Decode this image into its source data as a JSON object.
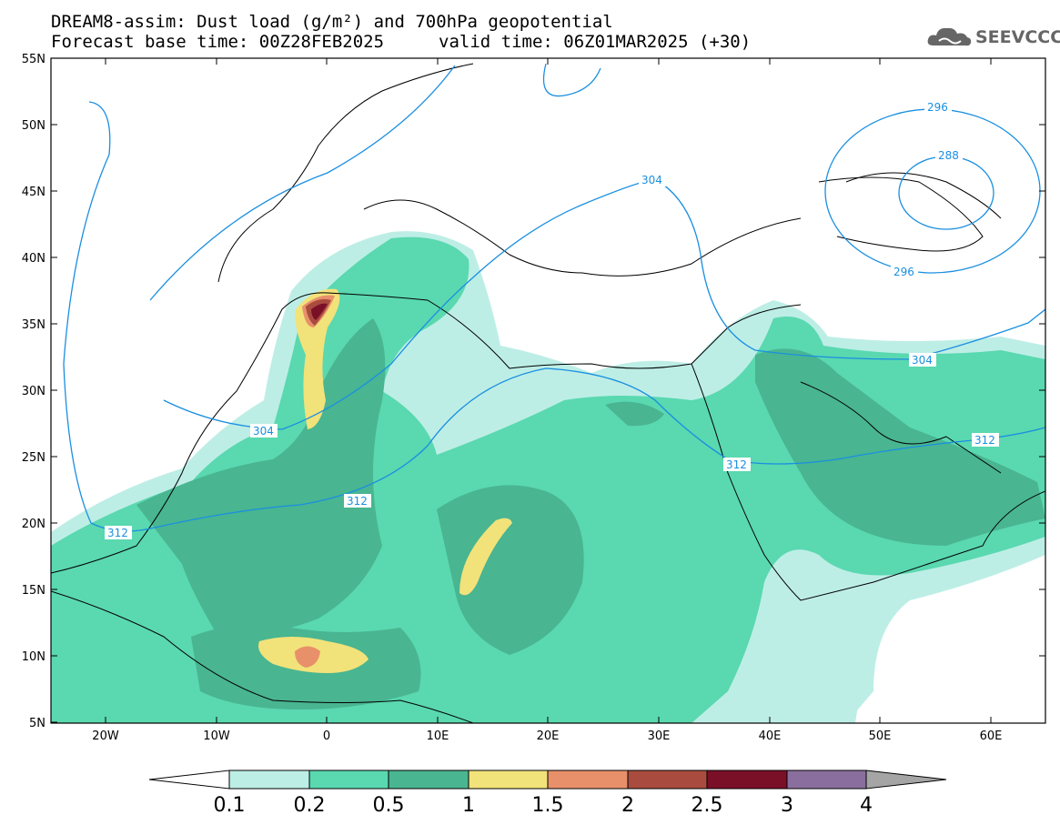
{
  "title": {
    "line1": "DREAM8-assim: Dust load (g/m²) and 700hPa geopotential",
    "line2a": "Forecast base time: 00Z28FEB2025",
    "line2b": "valid time: 06Z01MAR2025 (+30)"
  },
  "logo": {
    "text": "SEEVCCC",
    "icon": "cloud-logo-icon"
  },
  "map": {
    "lat_labels": [
      "55N",
      "50N",
      "45N",
      "40N",
      "35N",
      "30N",
      "25N",
      "20N",
      "15N",
      "10N",
      "5N"
    ],
    "lon_labels": [
      "20W",
      "10W",
      "0",
      "10E",
      "20E",
      "30E",
      "40E",
      "50E",
      "60E"
    ],
    "contour_labels": [
      "296",
      "288",
      "296",
      "304",
      "312",
      "304",
      "312",
      "312",
      "312",
      "304"
    ]
  },
  "colorbar": {
    "labels": [
      "0.1",
      "0.2",
      "0.5",
      "1",
      "1.5",
      "2",
      "2.5",
      "3",
      "4"
    ],
    "colors": [
      "#ffffff",
      "#bdeee6",
      "#5ad8b0",
      "#49b591",
      "#f2e27a",
      "#e8906a",
      "#a94c3f",
      "#7a1028",
      "#8a6f9e",
      "#a5a5a5"
    ]
  }
}
